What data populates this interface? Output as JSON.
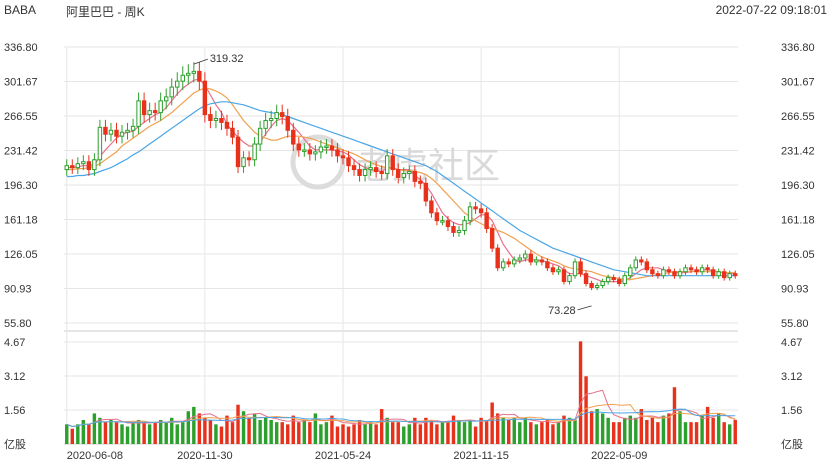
{
  "header": {
    "ticker": "BABA",
    "title": "阿里巴巴 - 周K",
    "timestamp": "2022-07-22 09:18:01"
  },
  "watermark": "老虎社区",
  "colors": {
    "up": "#2ca02c",
    "down": "#e8311a",
    "ma5": "#e8708b",
    "ma10": "#f0a050",
    "ma20": "#4aa6e8",
    "grid": "#e6e6e6"
  },
  "chart_data": [
    {
      "type": "candlestick",
      "name": "price",
      "y_ticks": [
        "336.80",
        "301.67",
        "266.55",
        "231.42",
        "196.30",
        "161.18",
        "126.05",
        "90.93",
        "55.80"
      ],
      "ylim": [
        55.8,
        336.8
      ],
      "x_ticks": [
        "2020-06-08",
        "2020-11-30",
        "2021-05-24",
        "2021-11-15",
        "2022-05-09"
      ],
      "annotations": [
        {
          "text": "319.32",
          "value": 319.32
        },
        {
          "text": "73.28",
          "value": 73.28
        }
      ],
      "close": [
        216,
        214,
        218,
        220,
        212,
        222,
        255,
        248,
        252,
        246,
        250,
        252,
        256,
        282,
        268,
        272,
        270,
        282,
        286,
        296,
        302,
        308,
        310,
        312,
        302,
        268,
        262,
        264,
        260,
        254,
        245,
        215,
        224,
        222,
        238,
        254,
        262,
        264,
        270,
        266,
        252,
        238,
        232,
        232,
        228,
        230,
        235,
        236,
        232,
        226,
        224,
        216,
        212,
        206,
        212,
        214,
        210,
        208,
        226,
        212,
        204,
        208,
        210,
        200,
        198,
        180,
        168,
        160,
        160,
        154,
        148,
        150,
        160,
        174,
        172,
        168,
        152,
        132,
        112,
        118,
        116,
        120,
        122,
        126,
        118,
        120,
        118,
        112,
        108,
        110,
        98,
        104,
        118,
        106,
        96,
        92,
        94,
        98,
        102,
        100,
        96,
        104,
        112,
        120,
        118,
        110,
        106,
        104,
        110,
        108,
        104,
        108,
        112,
        110,
        108,
        112,
        110,
        104,
        108,
        102,
        106,
        104
      ],
      "volume": [
        0.9,
        0.7,
        0.9,
        1.1,
        0.9,
        1.4,
        1.2,
        1.0,
        1.1,
        1.0,
        0.9,
        0.8,
        1.0,
        1.1,
        1.0,
        0.9,
        1.0,
        1.1,
        1.0,
        1.2,
        0.9,
        1.0,
        1.5,
        1.7,
        1.4,
        1.2,
        1.1,
        0.9,
        0.8,
        1.3,
        1.0,
        1.8,
        1.5,
        1.2,
        1.4,
        1.1,
        1.2,
        1.1,
        1.0,
        1.0,
        0.9,
        1.3,
        1.0,
        1.1,
        1.0,
        1.4,
        0.9,
        1.0,
        1.3,
        0.8,
        0.9,
        0.8,
        0.9,
        1.1,
        0.9,
        1.0,
        0.9,
        1.6,
        1.2,
        1.0,
        1.0,
        0.8,
        0.9,
        1.2,
        0.9,
        1.2,
        1.1,
        0.9,
        1.0,
        1.0,
        1.3,
        1.1,
        1.0,
        1.1,
        0.8,
        1.2,
        1.1,
        1.9,
        1.4,
        1.2,
        1.1,
        1.2,
        1.0,
        1.2,
        1.0,
        0.9,
        1.0,
        1.1,
        0.9,
        1.0,
        1.3,
        1.2,
        1.1,
        4.7,
        3.1,
        1.5,
        1.6,
        1.4,
        1.2,
        1.0,
        1.0,
        1.2,
        1.3,
        1.2,
        1.6,
        1.1,
        1.2,
        1.0,
        1.3,
        1.4,
        2.6,
        1.5,
        1.0,
        1.0,
        1.0,
        1.3,
        1.7,
        1.2,
        1.4,
        1.0,
        0.9,
        1.1
      ],
      "ma5": [
        214,
        214,
        215,
        216,
        216,
        217,
        225,
        232,
        238,
        244,
        248,
        250,
        251,
        256,
        260,
        264,
        268,
        270,
        275,
        282,
        289,
        295,
        299,
        303,
        304,
        298,
        288,
        278,
        270,
        258,
        251,
        245,
        240,
        236,
        236,
        240,
        248,
        256,
        262,
        264,
        262,
        256,
        250,
        243,
        236,
        232,
        232,
        232,
        232,
        231,
        230,
        227,
        222,
        217,
        214,
        212,
        211,
        210,
        214,
        214,
        212,
        212,
        212,
        206,
        202,
        196,
        188,
        178,
        168,
        162,
        158,
        156,
        156,
        158,
        162,
        166,
        166,
        160,
        148,
        136,
        128,
        120,
        118,
        120,
        120,
        120,
        119,
        118,
        116,
        114,
        110,
        106,
        106,
        106,
        104,
        102,
        100,
        98,
        98,
        98,
        98,
        99,
        102,
        106,
        110,
        112,
        112,
        112,
        110,
        108,
        107,
        107,
        107,
        108,
        109,
        110,
        110,
        109,
        108,
        107,
        106,
        106
      ],
      "ma10": [
        212,
        212,
        213,
        213,
        214,
        215,
        218,
        222,
        226,
        230,
        236,
        240,
        244,
        248,
        252,
        256,
        259,
        262,
        266,
        270,
        275,
        280,
        285,
        290,
        293,
        295,
        294,
        292,
        289,
        285,
        278,
        270,
        262,
        256,
        250,
        246,
        244,
        242,
        242,
        244,
        246,
        246,
        246,
        245,
        244,
        242,
        240,
        238,
        236,
        234,
        232,
        230,
        228,
        225,
        222,
        219,
        217,
        215,
        214,
        213,
        212,
        211,
        211,
        210,
        209,
        207,
        203,
        198,
        192,
        186,
        180,
        174,
        168,
        164,
        160,
        157,
        154,
        152,
        150,
        148,
        145,
        142,
        138,
        134,
        130,
        126,
        123,
        121,
        119,
        117,
        114,
        112,
        111,
        110,
        109,
        108,
        106,
        104,
        103,
        102,
        101,
        100,
        100,
        101,
        102,
        103,
        104,
        105,
        106,
        107,
        108,
        108,
        108,
        108,
        108,
        108,
        108,
        108,
        108,
        107,
        107,
        107
      ],
      "ma20": [
        205,
        205,
        206,
        206,
        207,
        208,
        210,
        212,
        214,
        217,
        220,
        223,
        227,
        230,
        234,
        238,
        242,
        246,
        250,
        254,
        258,
        262,
        266,
        270,
        274,
        277,
        279,
        280,
        281,
        281,
        280,
        279,
        278,
        276,
        274,
        272,
        271,
        270,
        269,
        268,
        266,
        264,
        262,
        260,
        258,
        256,
        254,
        252,
        250,
        248,
        246,
        244,
        242,
        240,
        238,
        236,
        234,
        232,
        230,
        228,
        226,
        224,
        222,
        220,
        218,
        216,
        213,
        210,
        206,
        202,
        198,
        194,
        190,
        186,
        182,
        178,
        174,
        170,
        166,
        162,
        158,
        154,
        150,
        147,
        144,
        141,
        138,
        135,
        132,
        130,
        128,
        126,
        124,
        122,
        120,
        118,
        116,
        114,
        112,
        110,
        109,
        108,
        107,
        106,
        105,
        104,
        104,
        104,
        104,
        104,
        104,
        104,
        104,
        104,
        104,
        104,
        104,
        104,
        104,
        104,
        104,
        104
      ]
    },
    {
      "type": "bar",
      "name": "volume",
      "y_ticks": [
        "4.67",
        "3.12",
        "1.56",
        "亿股"
      ],
      "ylim": [
        0,
        4.67
      ]
    }
  ]
}
